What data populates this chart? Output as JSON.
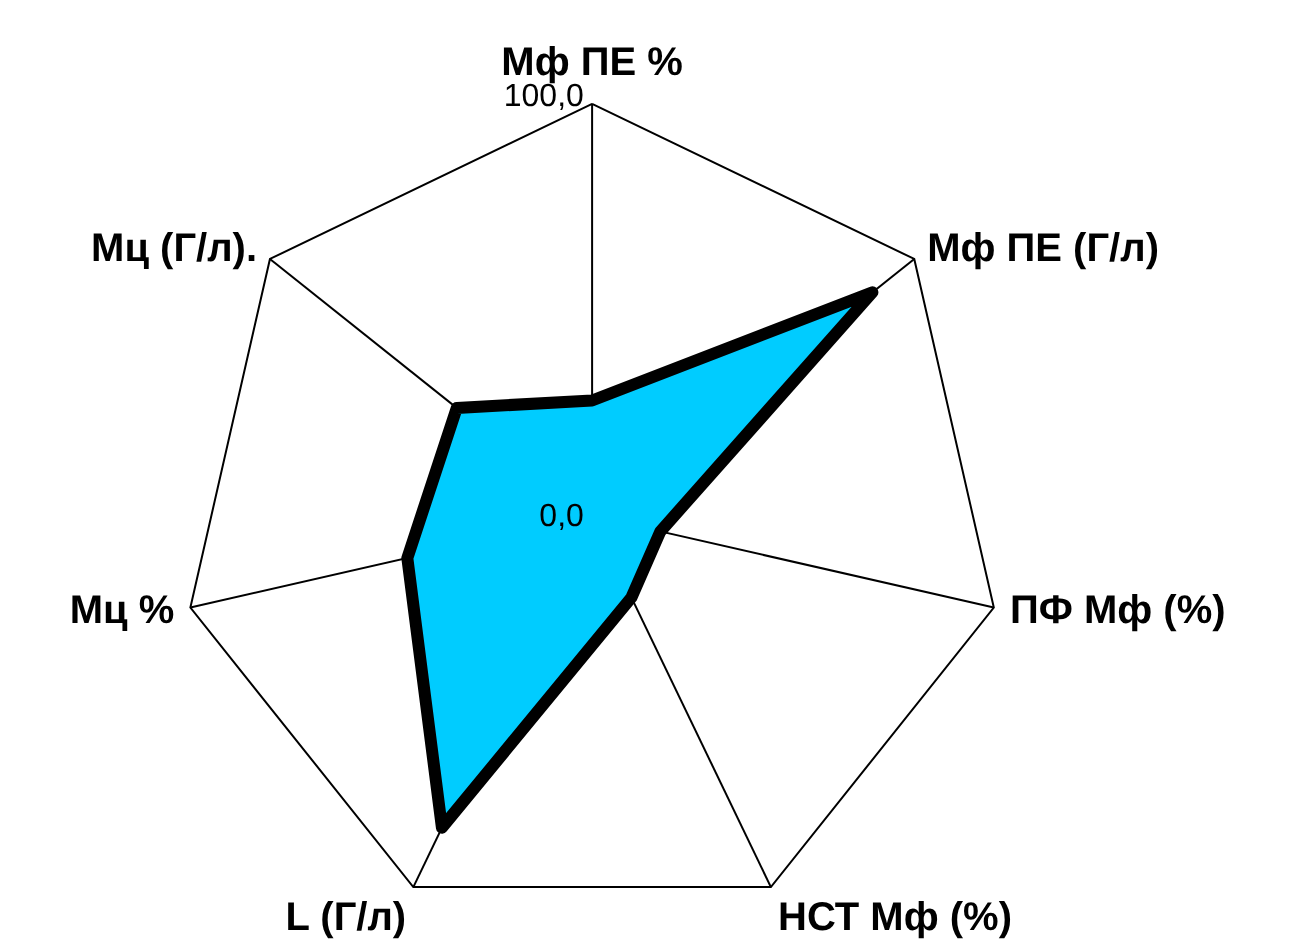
{
  "chart_data": {
    "type": "radar",
    "categories": [
      "Мф ПЕ %",
      "Мф ПЕ (Г/л)",
      "ПФ Мф (%)",
      "НСТ Мф (%)",
      "L (Г/л)",
      "Мц %",
      "Мц (Г/л)."
    ],
    "series": [
      {
        "color": "#00ccff",
        "values": [
          28,
          87,
          17,
          22,
          84,
          46,
          42
        ]
      }
    ],
    "ylim": [
      0,
      100
    ],
    "yticks": [
      {
        "value": 0,
        "label": "0,0"
      },
      {
        "value": 100,
        "label": "100,0"
      }
    ],
    "grid": true,
    "marker": "none",
    "line_style": "solid"
  }
}
